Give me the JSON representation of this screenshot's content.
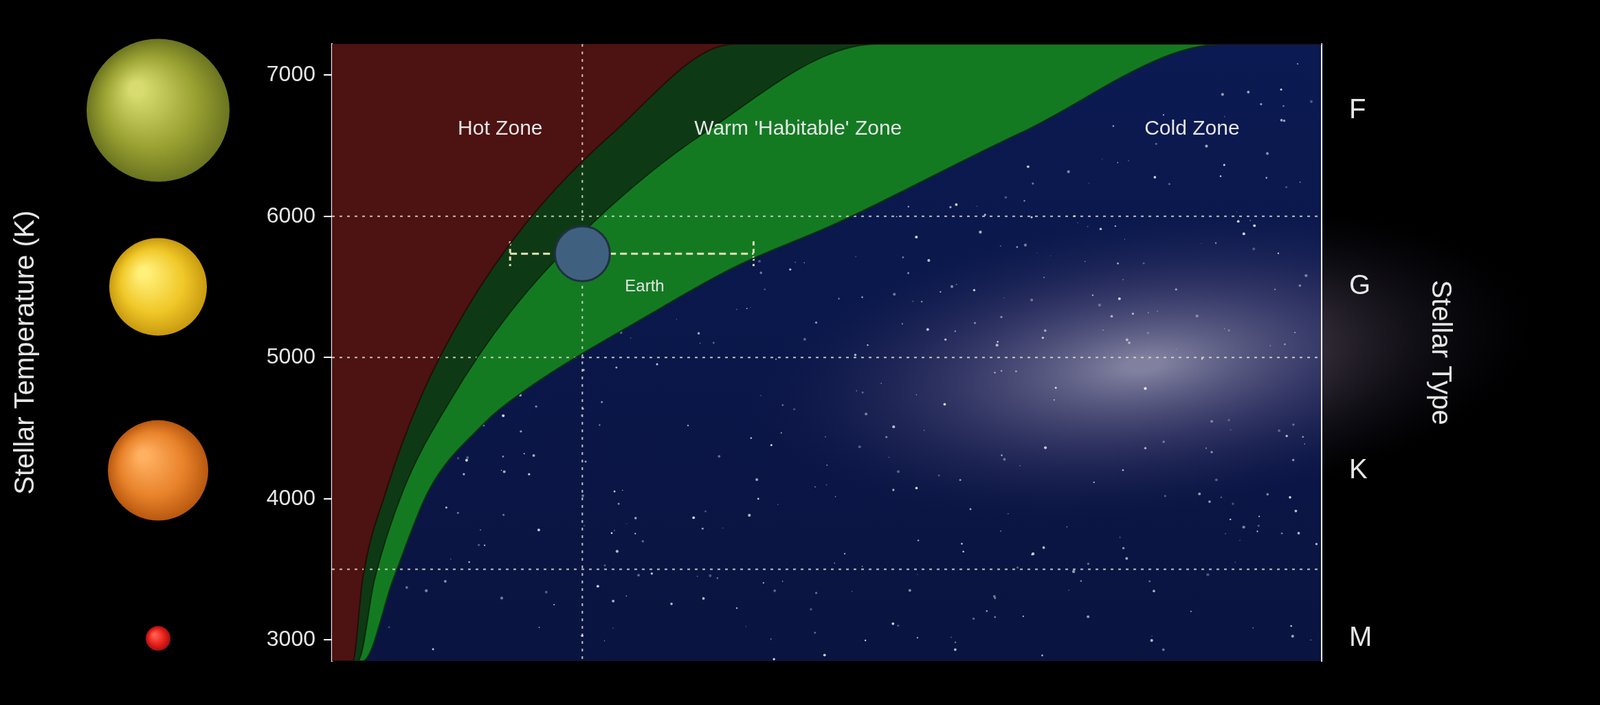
{
  "chart_data": {
    "type": "line",
    "y_label": "Stellar Temperature (K)",
    "y2_label": "Stellar Type",
    "xlim": [
      0,
      100
    ],
    "ylim": [
      2850,
      7220
    ],
    "yticks": [
      3000,
      4000,
      5000,
      6000,
      7000
    ],
    "y2lim": [
      2850,
      7220
    ],
    "y2ticks": [
      {
        "value": 6750,
        "label": "F"
      },
      {
        "value": 5500,
        "label": "G"
      },
      {
        "value": 4200,
        "label": "K"
      },
      {
        "value": 3010,
        "label": "M"
      }
    ],
    "tick_labels": "y",
    "grid": false,
    "hlines": [
      3500,
      5000,
      6000
    ],
    "boundaries": [
      {
        "color": "#137a22",
        "x": [
          0,
          3.1,
          6.2,
          9.8,
          14.9,
          18.0,
          32.5,
          40.7,
          51.0,
          69.6,
          90.2,
          100
        ],
        "y": [
          2850,
          2850,
          3430,
          4060,
          4500,
          4690,
          5320,
          5640,
          5950,
          6590,
          7220,
          7220
        ]
      },
      {
        "color": "#0d3a14",
        "x": [
          0,
          2.6,
          4.3,
          7.2,
          11.9,
          18.0,
          26.3,
          37.6,
          55.0,
          100
        ],
        "y": [
          2850,
          2850,
          3430,
          4060,
          4690,
          5320,
          5950,
          6590,
          7220,
          7220
        ]
      },
      {
        "color": "#4d1212",
        "x": [
          0,
          2.1,
          3.1,
          5.5,
          8.8,
          13.4,
          19.6,
          28.4,
          40.7,
          100
        ],
        "y": [
          2850,
          2850,
          3430,
          4060,
          4690,
          5320,
          5950,
          6590,
          7220,
          7220
        ]
      }
    ],
    "annotations": [
      {
        "text": "Hot Zone",
        "x": 17.0,
        "y": 6620
      },
      {
        "text": "Warm 'Habitable' Zone",
        "x": 47.1,
        "y": 6620
      },
      {
        "text": "Cold Zone",
        "x": 86.9,
        "y": 6620
      }
    ],
    "points": [
      {
        "label": "Earth",
        "x": 25.3,
        "y": 5735,
        "x_low": 18.0,
        "x_high": 42.6
      }
    ]
  }
}
